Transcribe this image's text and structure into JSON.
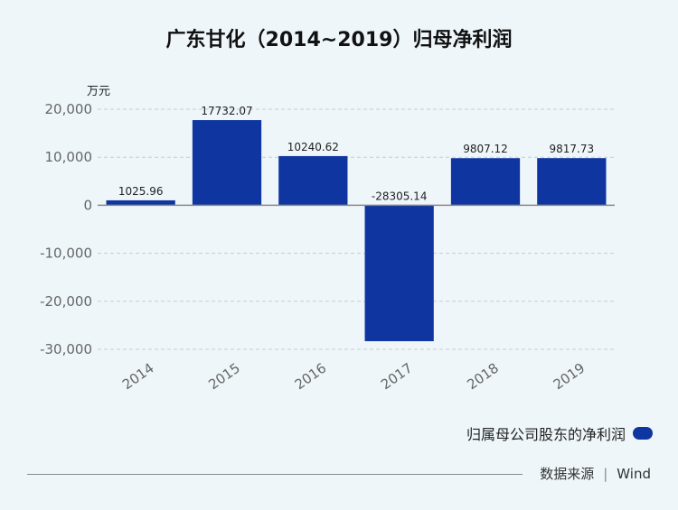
{
  "unit_label": "万元",
  "legend_label": "归属母公司股东的净利润",
  "source": {
    "label": "数据来源",
    "separator": "|",
    "value": "Wind"
  },
  "colors": {
    "bar": "#0f35a0",
    "grid": "#c8ccd2",
    "axis": "#888888",
    "tick_text": "#666666"
  },
  "chart_data": {
    "type": "bar",
    "title": "广东甘化（2014~2019）归母净利润",
    "xlabel": "",
    "ylabel": "万元",
    "categories": [
      "2014",
      "2015",
      "2016",
      "2017",
      "2018",
      "2019"
    ],
    "series": [
      {
        "name": "归属母公司股东的净利润",
        "values": [
          1025.96,
          17732.07,
          10240.62,
          -28305.14,
          9807.12,
          9817.73
        ]
      }
    ],
    "value_labels": [
      "1025.96",
      "17732.07",
      "10240.62",
      "-28305.14",
      "9807.12",
      "9817.73"
    ],
    "ylim": [
      -30000,
      20000
    ],
    "yticks": [
      20000,
      10000,
      0,
      -10000,
      -20000,
      -30000
    ],
    "ytick_labels": [
      "20,000",
      "10,000",
      "0",
      "-10,000",
      "-20,000",
      "-30,000"
    ],
    "grid": true,
    "legend_position": "bottom-right"
  }
}
